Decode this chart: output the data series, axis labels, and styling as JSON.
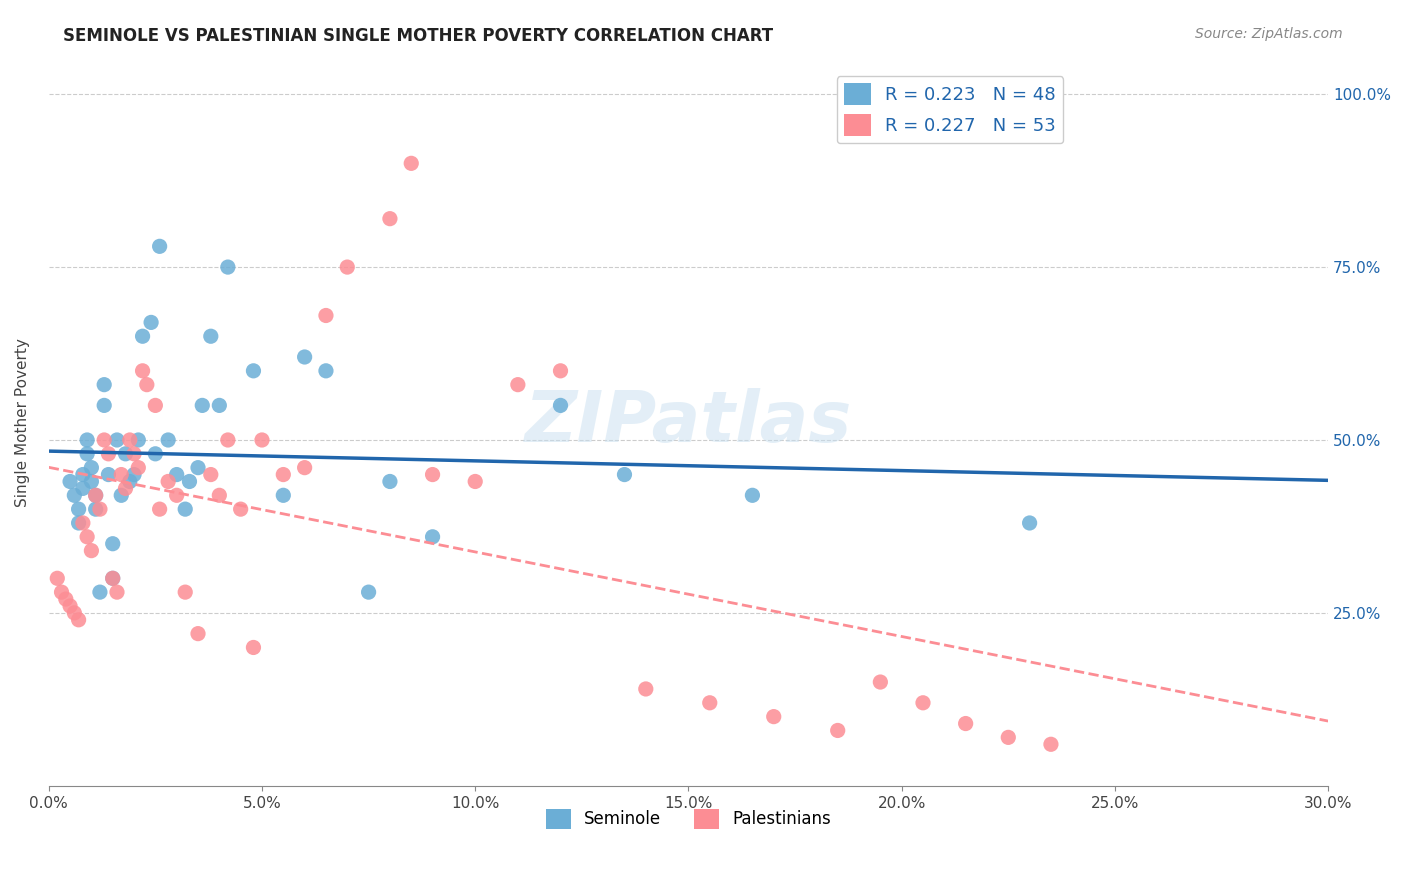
{
  "title": "SEMINOLE VS PALESTINIAN SINGLE MOTHER POVERTY CORRELATION CHART",
  "source": "Source: ZipAtlas.com",
  "xlabel_bottom": "",
  "ylabel": "Single Mother Poverty",
  "xlim": [
    0.0,
    0.3
  ],
  "ylim": [
    0.0,
    1.05
  ],
  "xtick_labels": [
    "0.0%",
    "5.0%",
    "10.0%",
    "15.0%",
    "20.0%",
    "25.0%",
    "30.0%"
  ],
  "xtick_vals": [
    0.0,
    0.05,
    0.1,
    0.15,
    0.2,
    0.25,
    0.3
  ],
  "ytick_labels": [
    "25.0%",
    "50.0%",
    "75.0%",
    "100.0%"
  ],
  "ytick_vals": [
    0.25,
    0.5,
    0.75,
    1.0
  ],
  "legend1_label": "R = 0.223   N = 48",
  "legend2_label": "R = 0.227   N = 53",
  "legend_bottom1": "Seminole",
  "legend_bottom2": "Palestinians",
  "seminole_color": "#6baed6",
  "palestinian_color": "#fc8d94",
  "seminole_trend_color": "#2166ac",
  "palestinian_trend_dashed_color": "#fc8d94",
  "watermark": "ZIPatlas",
  "seminole_x": [
    0.005,
    0.006,
    0.007,
    0.007,
    0.008,
    0.008,
    0.009,
    0.009,
    0.01,
    0.01,
    0.011,
    0.011,
    0.012,
    0.013,
    0.013,
    0.014,
    0.015,
    0.015,
    0.016,
    0.017,
    0.018,
    0.019,
    0.02,
    0.021,
    0.022,
    0.024,
    0.025,
    0.026,
    0.028,
    0.03,
    0.032,
    0.033,
    0.035,
    0.036,
    0.038,
    0.04,
    0.042,
    0.048,
    0.055,
    0.06,
    0.065,
    0.075,
    0.08,
    0.09,
    0.12,
    0.135,
    0.165,
    0.23
  ],
  "seminole_y": [
    0.44,
    0.42,
    0.4,
    0.38,
    0.45,
    0.43,
    0.5,
    0.48,
    0.46,
    0.44,
    0.42,
    0.4,
    0.28,
    0.55,
    0.58,
    0.45,
    0.3,
    0.35,
    0.5,
    0.42,
    0.48,
    0.44,
    0.45,
    0.5,
    0.65,
    0.67,
    0.48,
    0.78,
    0.5,
    0.45,
    0.4,
    0.44,
    0.46,
    0.55,
    0.65,
    0.55,
    0.75,
    0.6,
    0.42,
    0.62,
    0.6,
    0.28,
    0.44,
    0.36,
    0.55,
    0.45,
    0.42,
    0.38
  ],
  "palestinian_x": [
    0.002,
    0.003,
    0.004,
    0.005,
    0.006,
    0.007,
    0.008,
    0.009,
    0.01,
    0.011,
    0.012,
    0.013,
    0.014,
    0.015,
    0.016,
    0.017,
    0.018,
    0.019,
    0.02,
    0.021,
    0.022,
    0.023,
    0.025,
    0.026,
    0.028,
    0.03,
    0.032,
    0.035,
    0.038,
    0.04,
    0.042,
    0.045,
    0.048,
    0.05,
    0.055,
    0.06,
    0.065,
    0.07,
    0.08,
    0.085,
    0.09,
    0.1,
    0.11,
    0.12,
    0.14,
    0.155,
    0.17,
    0.185,
    0.195,
    0.205,
    0.215,
    0.225,
    0.235
  ],
  "palestinian_y": [
    0.3,
    0.28,
    0.27,
    0.26,
    0.25,
    0.24,
    0.38,
    0.36,
    0.34,
    0.42,
    0.4,
    0.5,
    0.48,
    0.3,
    0.28,
    0.45,
    0.43,
    0.5,
    0.48,
    0.46,
    0.6,
    0.58,
    0.55,
    0.4,
    0.44,
    0.42,
    0.28,
    0.22,
    0.45,
    0.42,
    0.5,
    0.4,
    0.2,
    0.5,
    0.45,
    0.46,
    0.68,
    0.75,
    0.82,
    0.9,
    0.45,
    0.44,
    0.58,
    0.6,
    0.14,
    0.12,
    0.1,
    0.08,
    0.15,
    0.12,
    0.09,
    0.07,
    0.06
  ]
}
